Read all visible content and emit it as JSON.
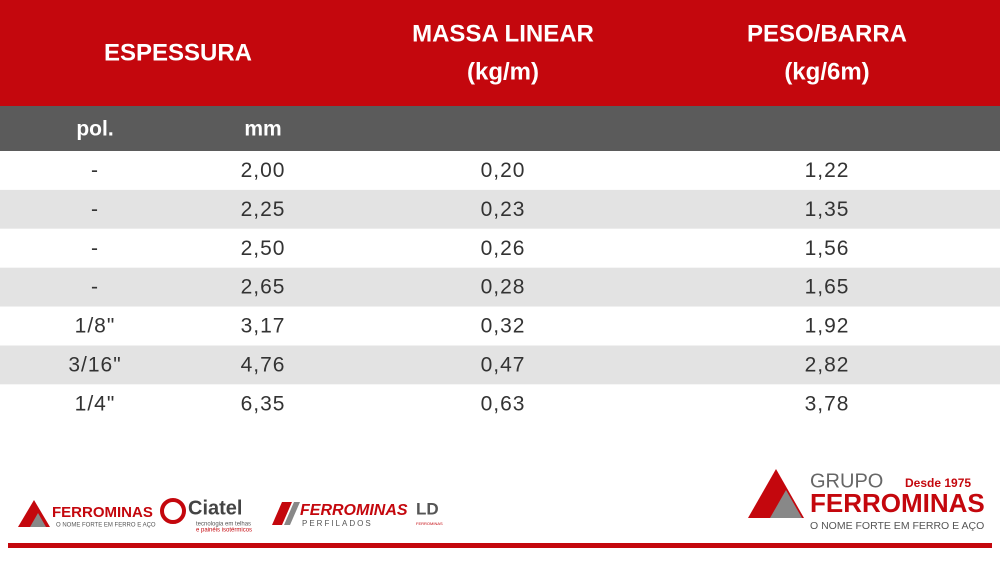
{
  "header": {
    "espessura": "ESPESSURA",
    "massa_linear": "MASSA LINEAR",
    "massa_unit": "(kg/m)",
    "peso_barra": "PESO/BARRA",
    "peso_unit": "(kg/6m)"
  },
  "subheader": {
    "pol": "pol.",
    "mm": "mm"
  },
  "table": {
    "rows": [
      [
        "-",
        "2,00",
        "0,20",
        "1,22"
      ],
      [
        "-",
        "2,25",
        "0,23",
        "1,35"
      ],
      [
        "-",
        "2,50",
        "0,26",
        "1,56"
      ],
      [
        "-",
        "2,65",
        "0,28",
        "1,65"
      ],
      [
        "1/8\"",
        "3,17",
        "0,32",
        "1,92"
      ],
      [
        "3/16\"",
        "4,76",
        "0,47",
        "2,82"
      ],
      [
        "1/4\"",
        "6,35",
        "0,63",
        "3,78"
      ]
    ]
  },
  "footer": {
    "ferrominas": {
      "name": "FERROMINAS",
      "slogan": "O NOME FORTE EM FERRO E AÇO"
    },
    "ciatel": {
      "name": "Ciatel",
      "line1": "tecnologia em telhas",
      "line2": "e painéis isotérmicos"
    },
    "perfilados": {
      "name": "FERROMINAS",
      "sub": "PERFILADOS"
    },
    "ld": {
      "name": "LD",
      "sub": "FERROMINAS"
    },
    "grupo": {
      "grupo": "GRUPO",
      "since": "Desde 1975",
      "name": "FERROMINAS",
      "slogan": "O NOME FORTE EM FERRO E AÇO"
    }
  }
}
